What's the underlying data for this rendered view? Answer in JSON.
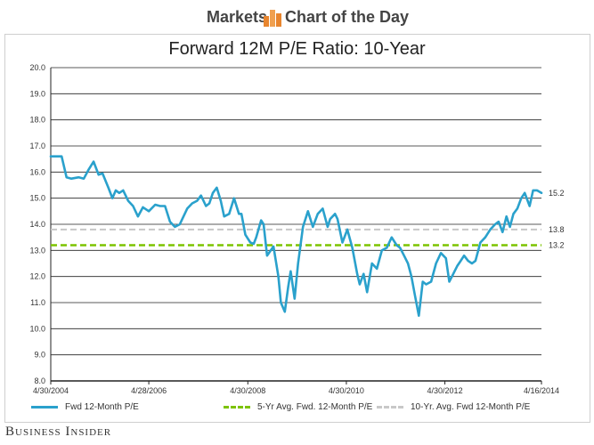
{
  "header": {
    "markets": "Markets",
    "chart_of_the_day": "Chart of the Day"
  },
  "footer": {
    "brand": "Business Insider"
  },
  "colors": {
    "pe_line": "#2aa1cc",
    "avg5": "#7dc300",
    "avg10": "#c8c8c8",
    "grid": "#222222",
    "logo_orange": "#e8852e"
  },
  "chart_data": {
    "type": "line",
    "title": "Forward 12M P/E Ratio: 10-Year",
    "xlabel": "",
    "ylabel": "",
    "ylim": [
      8.0,
      20.0
    ],
    "yticks": [
      "8.0",
      "9.0",
      "10.0",
      "11.0",
      "12.0",
      "13.0",
      "14.0",
      "15.0",
      "16.0",
      "17.0",
      "18.0",
      "19.0",
      "20.0"
    ],
    "xlim": [
      2004.33,
      2014.29
    ],
    "xticks": [
      {
        "x": 2004.33,
        "label": "4/30/2004"
      },
      {
        "x": 2006.32,
        "label": "4/28/2006"
      },
      {
        "x": 2008.33,
        "label": "4/30/2008"
      },
      {
        "x": 2010.33,
        "label": "4/30/2010"
      },
      {
        "x": 2012.33,
        "label": "4/30/2012"
      },
      {
        "x": 2014.29,
        "label": "4/16/2014"
      }
    ],
    "series": [
      {
        "name": "Fwd 12-Month P/E",
        "style": "solid",
        "end_label": "15.2",
        "x": [
          2004.33,
          2004.4,
          2004.55,
          2004.65,
          2004.75,
          2004.9,
          2005.0,
          2005.1,
          2005.2,
          2005.3,
          2005.38,
          2005.5,
          2005.58,
          2005.65,
          2005.72,
          2005.8,
          2005.9,
          2006.0,
          2006.1,
          2006.2,
          2006.32,
          2006.45,
          2006.55,
          2006.65,
          2006.75,
          2006.85,
          2006.95,
          2007.0,
          2007.1,
          2007.2,
          2007.3,
          2007.38,
          2007.48,
          2007.55,
          2007.62,
          2007.7,
          2007.78,
          2007.85,
          2007.95,
          2008.05,
          2008.15,
          2008.2,
          2008.28,
          2008.38,
          2008.45,
          2008.5,
          2008.6,
          2008.65,
          2008.72,
          2008.85,
          2008.95,
          2009.0,
          2009.08,
          2009.15,
          2009.2,
          2009.28,
          2009.35,
          2009.45,
          2009.55,
          2009.65,
          2009.75,
          2009.85,
          2009.95,
          2010.0,
          2010.1,
          2010.15,
          2010.25,
          2010.35,
          2010.45,
          2010.55,
          2010.6,
          2010.68,
          2010.75,
          2010.85,
          2010.95,
          2011.05,
          2011.15,
          2011.25,
          2011.35,
          2011.42,
          2011.5,
          2011.58,
          2011.65,
          2011.72,
          2011.8,
          2011.88,
          2011.95,
          2012.05,
          2012.15,
          2012.25,
          2012.35,
          2012.42,
          2012.5,
          2012.58,
          2012.65,
          2012.72,
          2012.8,
          2012.88,
          2012.95,
          2013.05,
          2013.15,
          2013.25,
          2013.35,
          2013.42,
          2013.5,
          2013.58,
          2013.65,
          2013.72,
          2013.8,
          2013.88,
          2013.95,
          2014.05,
          2014.12,
          2014.2,
          2014.29
        ],
        "y": [
          16.6,
          16.6,
          16.6,
          15.8,
          15.75,
          15.8,
          15.75,
          16.1,
          16.4,
          15.9,
          15.95,
          15.4,
          15.0,
          15.3,
          15.2,
          15.3,
          14.9,
          14.7,
          14.3,
          14.65,
          14.5,
          14.75,
          14.7,
          14.7,
          14.1,
          13.9,
          14.0,
          14.2,
          14.6,
          14.8,
          14.9,
          15.1,
          14.7,
          14.8,
          15.2,
          15.4,
          14.9,
          14.3,
          14.4,
          15.0,
          14.4,
          14.4,
          13.6,
          13.3,
          13.25,
          13.5,
          14.15,
          14.0,
          12.8,
          13.15,
          12.0,
          11.0,
          10.65,
          11.6,
          12.2,
          11.15,
          12.5,
          13.9,
          14.5,
          13.9,
          14.4,
          14.6,
          13.9,
          14.2,
          14.4,
          14.2,
          13.3,
          13.8,
          13.1,
          12.1,
          11.7,
          12.1,
          11.4,
          12.5,
          12.3,
          13.0,
          13.1,
          13.5,
          13.2,
          13.1,
          12.8,
          12.5,
          12.0,
          11.3,
          10.5,
          11.8,
          11.7,
          11.8,
          12.5,
          12.9,
          12.7,
          11.8,
          12.1,
          12.4,
          12.6,
          12.8,
          12.6,
          12.5,
          12.6,
          13.3,
          13.5,
          13.8,
          14.0,
          14.1,
          13.7,
          14.3,
          13.9,
          14.4,
          14.6,
          15.0,
          15.2,
          14.7,
          15.3,
          15.3,
          15.2
        ]
      },
      {
        "name": "5-Yr Avg. Fwd. 12-Month P/E",
        "style": "dashed",
        "value": 13.2,
        "end_label": "13.2"
      },
      {
        "name": "10-Yr. Avg. Fwd 12-Month P/E",
        "style": "dashed",
        "value": 13.8,
        "end_label": "13.8"
      }
    ],
    "legend_position": "bottom",
    "grid": true
  }
}
